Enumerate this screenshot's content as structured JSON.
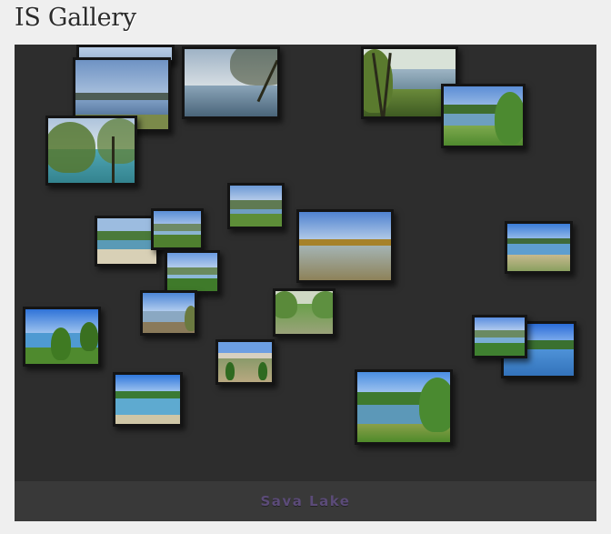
{
  "gallery": {
    "title": "IS Gallery",
    "caption": "Sava Lake"
  },
  "photos": [
    {
      "id": "p01",
      "scene": "lake-mountains"
    },
    {
      "id": "p02",
      "scene": "lake-mountains"
    },
    {
      "id": "p03",
      "scene": "lake-branches"
    },
    {
      "id": "p04",
      "scene": "forest-lake"
    },
    {
      "id": "p05",
      "scene": "lake-reeds"
    },
    {
      "id": "p06",
      "scene": "lake-trees"
    },
    {
      "id": "p07",
      "scene": "lake-hills"
    },
    {
      "id": "p08",
      "scene": "lake-shore"
    },
    {
      "id": "p09",
      "scene": "lake-hills"
    },
    {
      "id": "p10",
      "scene": "lake-reflection"
    },
    {
      "id": "p11",
      "scene": "lake-hills"
    },
    {
      "id": "p12",
      "scene": "lake-reeds"
    },
    {
      "id": "p13",
      "scene": "lake-pier"
    },
    {
      "id": "p14",
      "scene": "park-benches"
    },
    {
      "id": "p15",
      "scene": "lake-trees"
    },
    {
      "id": "p16",
      "scene": "lake-shore"
    },
    {
      "id": "p17",
      "scene": "lake-hills"
    },
    {
      "id": "p18",
      "scene": "lake-shore"
    },
    {
      "id": "p19",
      "scene": "building-garden"
    },
    {
      "id": "p20",
      "scene": "lake-sand"
    },
    {
      "id": "p21",
      "scene": "lake-trees"
    }
  ],
  "colors": {
    "sky": "#8fb4dd",
    "water": "#5e8fb0",
    "foliage": "#4f8a36",
    "stage": "#2d2d2d",
    "caption": "#5b4b78"
  }
}
